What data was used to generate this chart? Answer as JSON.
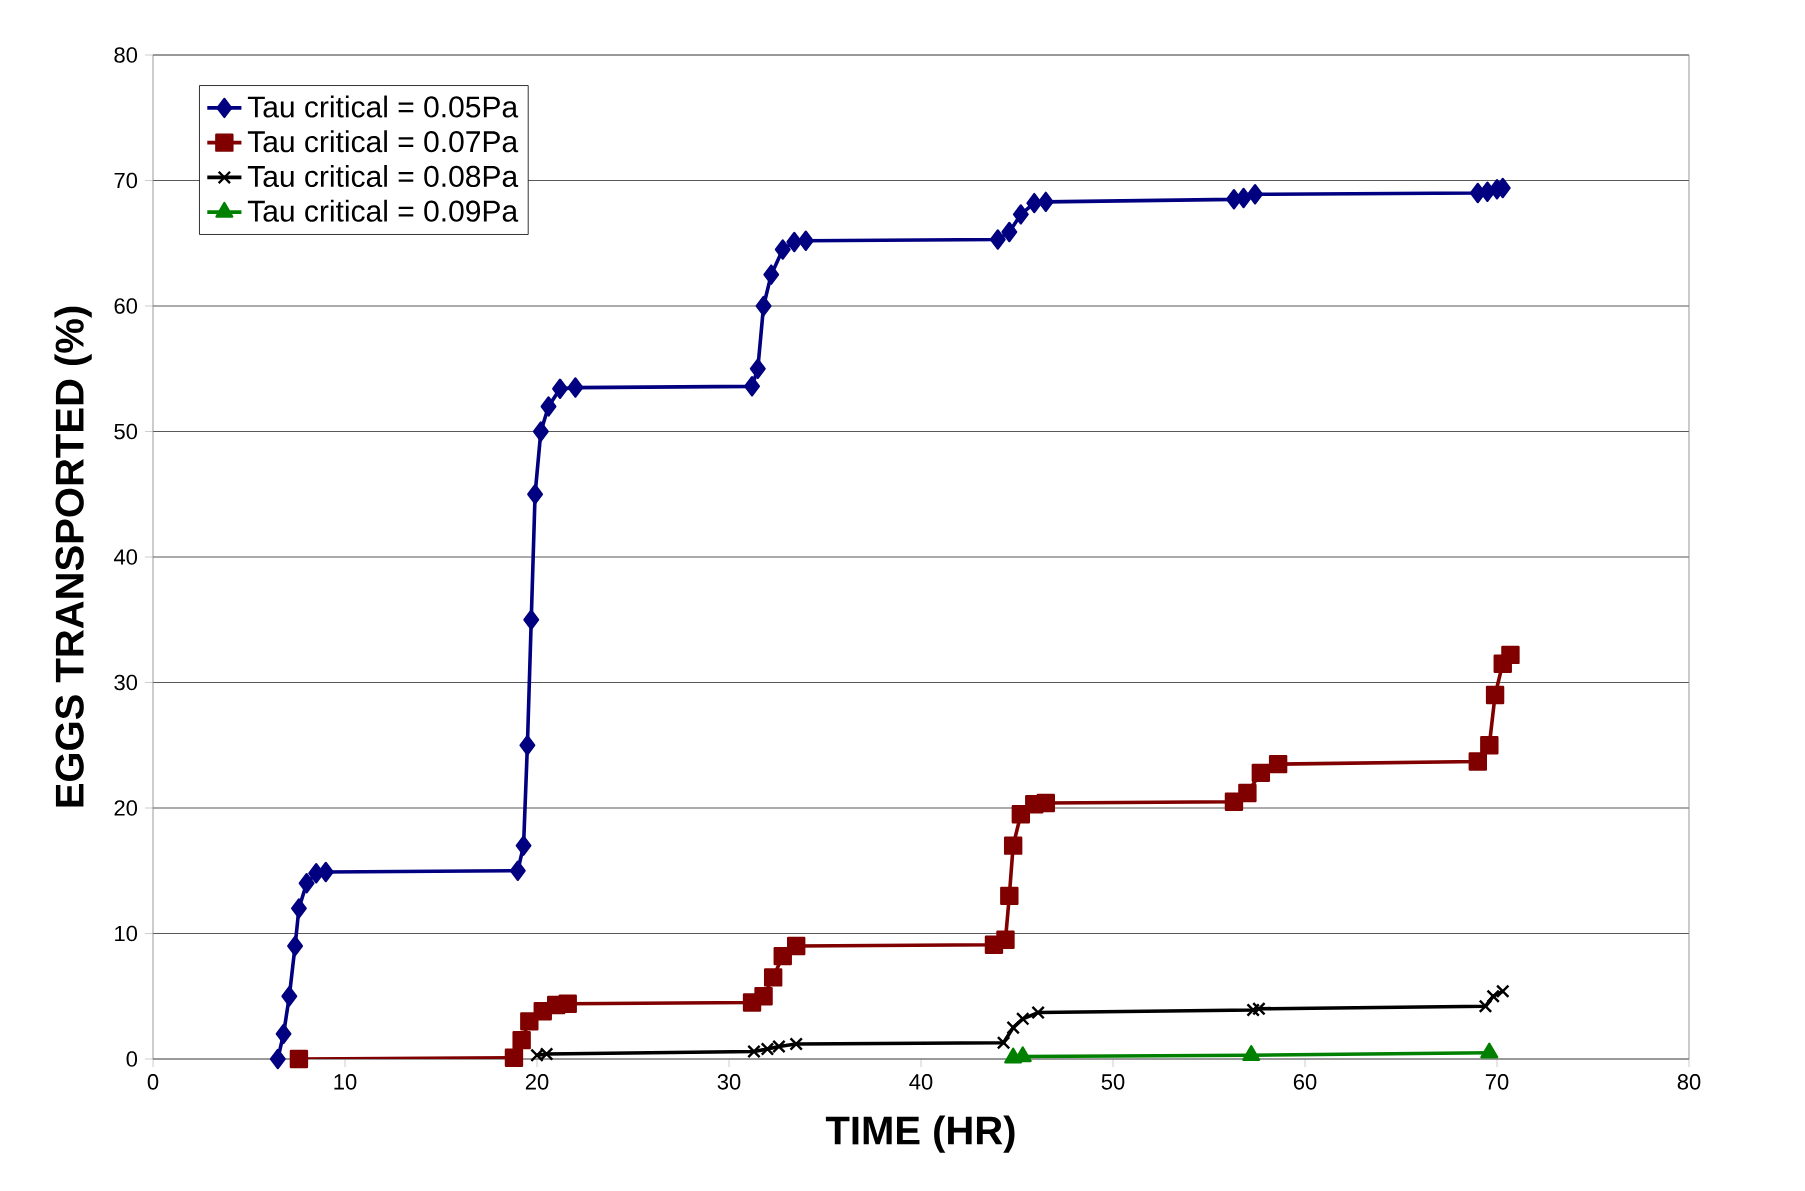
{
  "chart_data": {
    "type": "line",
    "xlabel": "TIME (HR)",
    "ylabel": "EGGS TRANSPORTED (%)",
    "xlim": [
      0,
      80
    ],
    "xticks": [
      0,
      10,
      20,
      30,
      40,
      50,
      60,
      70,
      80
    ],
    "ylim": [
      0,
      80
    ],
    "yticks": [
      0,
      10,
      20,
      30,
      40,
      50,
      60,
      70,
      80
    ],
    "grid": "y",
    "legend": "top left",
    "line_style": "solid",
    "series": [
      {
        "name": "Tau critical = 0.05Pa",
        "color": "#000080",
        "marker": "diamond",
        "x": [
          6.5,
          6.8,
          7.1,
          7.4,
          7.6,
          8.0,
          8.5,
          9.0,
          19.0,
          19.3,
          19.5,
          19.7,
          19.9,
          20.2,
          20.6,
          21.2,
          22.0,
          31.2,
          31.5,
          31.8,
          32.2,
          32.8,
          33.4,
          34.0,
          44.0,
          44.6,
          45.2,
          45.9,
          46.5,
          56.3,
          56.8,
          57.4,
          69.0,
          69.5,
          70.0,
          70.3
        ],
        "values": [
          0,
          2,
          5,
          9,
          12,
          14,
          14.8,
          14.9,
          15,
          17,
          25,
          35,
          45,
          50,
          52,
          53.4,
          53.5,
          53.6,
          55,
          60,
          62.5,
          64.5,
          65.1,
          65.2,
          65.3,
          65.9,
          67.3,
          68.2,
          68.3,
          68.5,
          68.6,
          68.9,
          69.0,
          69.1,
          69.3,
          69.4
        ]
      },
      {
        "name": "Tau critical = 0.07Pa",
        "color": "#800000",
        "marker": "square",
        "x": [
          7.6,
          18.8,
          19.2,
          19.6,
          20.3,
          21.0,
          21.6,
          31.2,
          31.8,
          32.3,
          32.8,
          33.5,
          43.8,
          44.4,
          44.6,
          44.8,
          45.2,
          45.9,
          46.5,
          56.3,
          57.0,
          57.7,
          58.6,
          69.0,
          69.6,
          69.9,
          70.3,
          70.7
        ],
        "values": [
          0,
          0.1,
          1.5,
          3,
          3.8,
          4.3,
          4.4,
          4.5,
          5,
          6.5,
          8.2,
          9,
          9.1,
          9.5,
          13,
          17,
          19.5,
          20.3,
          20.4,
          20.5,
          21.2,
          22.8,
          23.5,
          23.7,
          25,
          29,
          31.5,
          32.2
        ]
      },
      {
        "name": "Tau critical = 0.08Pa",
        "color": "#000000",
        "marker": "cross",
        "x": [
          20.0,
          20.5,
          31.3,
          32.0,
          32.6,
          33.5,
          44.3,
          44.8,
          45.3,
          46.1,
          57.3,
          57.6,
          69.4,
          69.8,
          70.3
        ],
        "values": [
          0.3,
          0.4,
          0.6,
          0.8,
          1.0,
          1.2,
          1.3,
          2.5,
          3.2,
          3.7,
          3.9,
          4.0,
          4.2,
          5.0,
          5.4
        ]
      },
      {
        "name": "Tau critical = 0.09Pa",
        "color": "#008000",
        "marker": "triangle",
        "x": [
          44.8,
          45.3,
          57.2,
          69.6
        ],
        "values": [
          0.1,
          0.2,
          0.3,
          0.5
        ]
      }
    ]
  }
}
